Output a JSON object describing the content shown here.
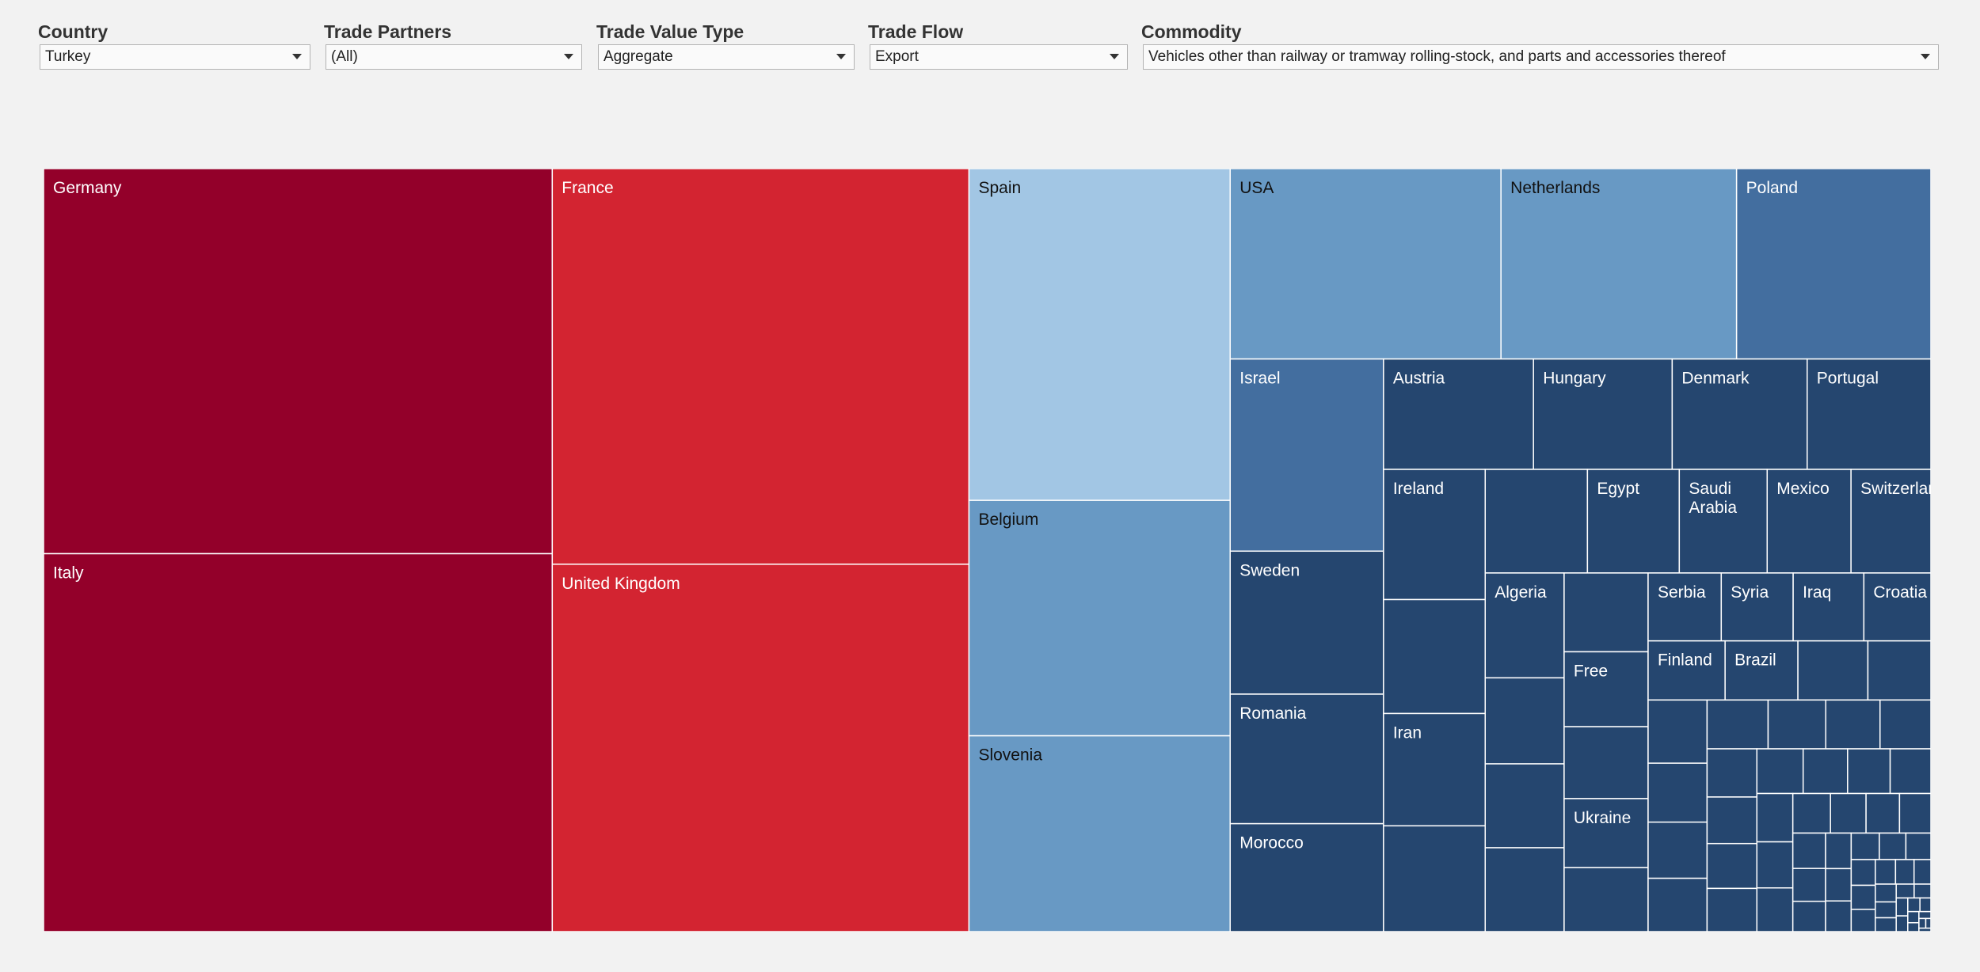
{
  "filters": {
    "country": {
      "label": "Country",
      "value": "Turkey"
    },
    "partners": {
      "label": "Trade Partners",
      "value": "(All)"
    },
    "value_type": {
      "label": "Trade Value Type",
      "value": "Aggregate"
    },
    "flow": {
      "label": "Trade Flow",
      "value": "Export"
    },
    "commodity": {
      "label": "Commodity",
      "value": "Vehicles other than railway or tramway rolling-stock, and parts and accessories thereof"
    }
  },
  "colors": {
    "dark_red": "#93002a",
    "red": "#d32431",
    "light_blue": "#a2c6e4",
    "mid_blue": "#6899c4",
    "steel_blue": "#436e9f",
    "dark_blue": "#25466f",
    "border": "#ffffff",
    "background": "#f2f2f2"
  },
  "chart_data": {
    "type": "treemap",
    "title": "",
    "value_note": "relative export share, estimated from rectangle areas",
    "items": [
      {
        "name": "Germany",
        "value": 236.7,
        "color": "dark_red"
      },
      {
        "name": "Italy",
        "value": 232.3,
        "color": "dark_red"
      },
      {
        "name": "France",
        "value": 199.2,
        "color": "red"
      },
      {
        "name": "United Kingdom",
        "value": 185.0,
        "color": "red"
      },
      {
        "name": "Spain",
        "value": 104.7,
        "color": "light_blue"
      },
      {
        "name": "Belgium",
        "value": 74.3,
        "color": "mid_blue"
      },
      {
        "name": "Slovenia",
        "value": 61.8,
        "color": "mid_blue"
      },
      {
        "name": "USA",
        "value": 62.3,
        "color": "mid_blue"
      },
      {
        "name": "Netherlands",
        "value": 54.2,
        "color": "mid_blue"
      },
      {
        "name": "Poland",
        "value": 44.7,
        "color": "steel_blue"
      },
      {
        "name": "Israel",
        "value": 35.6,
        "color": "steel_blue"
      },
      {
        "name": "Sweden",
        "value": 26.5,
        "color": "dark_blue"
      },
      {
        "name": "Romania",
        "value": 24.0,
        "color": "dark_blue"
      },
      {
        "name": "Morocco",
        "value": 20.0,
        "color": "dark_blue"
      },
      {
        "name": "Austria",
        "value": 20.0,
        "color": "dark_blue"
      },
      {
        "name": "Hungary",
        "value": 18.5,
        "color": "dark_blue"
      },
      {
        "name": "Denmark",
        "value": 18.0,
        "color": "dark_blue"
      },
      {
        "name": "Portugal",
        "value": 16.5,
        "color": "dark_blue"
      },
      {
        "name": "Ireland",
        "value": 16.0,
        "color": "dark_blue"
      },
      {
        "name": "",
        "value": 14.0,
        "color": "dark_blue"
      },
      {
        "name": "Iran",
        "value": 13.8,
        "color": "dark_blue"
      },
      {
        "name": "",
        "value": 13.0,
        "color": "dark_blue"
      },
      {
        "name": "",
        "value": 12.8,
        "color": "dark_blue"
      },
      {
        "name": "Egypt",
        "value": 11.5,
        "color": "dark_blue"
      },
      {
        "name": "Saudi Arabia",
        "value": 11.0,
        "color": "dark_blue"
      },
      {
        "name": "Mexico",
        "value": 10.5,
        "color": "dark_blue"
      },
      {
        "name": "Switzerland",
        "value": 10.0,
        "color": "dark_blue"
      },
      {
        "name": "Algeria",
        "value": 10.0,
        "color": "dark_blue"
      },
      {
        "name": "",
        "value": 8.2,
        "color": "dark_blue"
      },
      {
        "name": "",
        "value": 8.0,
        "color": "dark_blue"
      },
      {
        "name": "",
        "value": 8.0,
        "color": "dark_blue"
      },
      {
        "name": "",
        "value": 8.0,
        "color": "dark_blue"
      },
      {
        "name": "Free",
        "value": 7.6,
        "color": "dark_blue"
      },
      {
        "name": "",
        "value": 7.3,
        "color": "dark_blue"
      },
      {
        "name": "Ukraine",
        "value": 7.0,
        "color": "dark_blue"
      },
      {
        "name": "",
        "value": 6.5,
        "color": "dark_blue"
      },
      {
        "name": "Serbia",
        "value": 6.0,
        "color": "dark_blue"
      },
      {
        "name": "Syria",
        "value": 5.9,
        "color": "dark_blue"
      },
      {
        "name": "Iraq",
        "value": 5.8,
        "color": "dark_blue"
      },
      {
        "name": "Croatia",
        "value": 5.5,
        "color": "dark_blue"
      },
      {
        "name": "Finland",
        "value": 5.5,
        "color": "dark_blue"
      },
      {
        "name": "Brazil",
        "value": 5.2,
        "color": "dark_blue"
      },
      {
        "name": "",
        "value": 5.0,
        "color": "dark_blue"
      },
      {
        "name": "",
        "value": 4.5,
        "color": "dark_blue"
      },
      {
        "name": "",
        "value": 4.5,
        "color": "dark_blue"
      },
      {
        "name": "",
        "value": 4.2,
        "color": "dark_blue"
      },
      {
        "name": "",
        "value": 4.0,
        "color": "dark_blue"
      },
      {
        "name": "",
        "value": 3.8,
        "color": "dark_blue"
      },
      {
        "name": "",
        "value": 3.6,
        "color": "dark_blue"
      },
      {
        "name": "",
        "value": 3.4,
        "color": "dark_blue"
      },
      {
        "name": "",
        "value": 3.2,
        "color": "dark_blue"
      },
      {
        "name": "",
        "value": 3.0,
        "color": "dark_blue"
      },
      {
        "name": "",
        "value": 2.9,
        "color": "dark_blue"
      },
      {
        "name": "",
        "value": 2.8,
        "color": "dark_blue"
      },
      {
        "name": "",
        "value": 2.7,
        "color": "dark_blue"
      },
      {
        "name": "",
        "value": 2.6,
        "color": "dark_blue"
      },
      {
        "name": "",
        "value": 2.5,
        "color": "dark_blue"
      },
      {
        "name": "",
        "value": 2.4,
        "color": "dark_blue"
      },
      {
        "name": "",
        "value": 2.3,
        "color": "dark_blue"
      },
      {
        "name": "",
        "value": 2.2,
        "color": "dark_blue"
      },
      {
        "name": "",
        "value": 2.1,
        "color": "dark_blue"
      },
      {
        "name": "",
        "value": 2.0,
        "color": "dark_blue"
      },
      {
        "name": "",
        "value": 1.9,
        "color": "dark_blue"
      },
      {
        "name": "",
        "value": 1.8,
        "color": "dark_blue"
      },
      {
        "name": "",
        "value": 1.7,
        "color": "dark_blue"
      },
      {
        "name": "",
        "value": 1.6,
        "color": "dark_blue"
      },
      {
        "name": "",
        "value": 1.5,
        "color": "dark_blue"
      },
      {
        "name": "",
        "value": 1.4,
        "color": "dark_blue"
      },
      {
        "name": "",
        "value": 1.3,
        "color": "dark_blue"
      },
      {
        "name": "",
        "value": 1.2,
        "color": "dark_blue"
      },
      {
        "name": "",
        "value": 1.1,
        "color": "dark_blue"
      },
      {
        "name": "",
        "value": 1.0,
        "color": "dark_blue"
      },
      {
        "name": "",
        "value": 0.95,
        "color": "dark_blue"
      },
      {
        "name": "",
        "value": 0.9,
        "color": "dark_blue"
      },
      {
        "name": "",
        "value": 0.85,
        "color": "dark_blue"
      },
      {
        "name": "",
        "value": 0.8,
        "color": "dark_blue"
      },
      {
        "name": "",
        "value": 0.75,
        "color": "dark_blue"
      },
      {
        "name": "",
        "value": 0.7,
        "color": "dark_blue"
      },
      {
        "name": "",
        "value": 0.65,
        "color": "dark_blue"
      },
      {
        "name": "",
        "value": 0.6,
        "color": "dark_blue"
      },
      {
        "name": "",
        "value": 0.55,
        "color": "dark_blue"
      },
      {
        "name": "",
        "value": 0.5,
        "color": "dark_blue"
      },
      {
        "name": "",
        "value": 0.45,
        "color": "dark_blue"
      },
      {
        "name": "",
        "value": 0.4,
        "color": "dark_blue"
      },
      {
        "name": "",
        "value": 0.35,
        "color": "dark_blue"
      },
      {
        "name": "",
        "value": 0.3,
        "color": "dark_blue"
      },
      {
        "name": "",
        "value": 0.28,
        "color": "dark_blue"
      },
      {
        "name": "",
        "value": 0.25,
        "color": "dark_blue"
      },
      {
        "name": "",
        "value": 0.22,
        "color": "dark_blue"
      },
      {
        "name": "",
        "value": 0.2,
        "color": "dark_blue"
      },
      {
        "name": "",
        "value": 0.18,
        "color": "dark_blue"
      },
      {
        "name": "",
        "value": 0.15,
        "color": "dark_blue"
      },
      {
        "name": "",
        "value": 0.12,
        "color": "dark_blue"
      },
      {
        "name": "",
        "value": 0.1,
        "color": "dark_blue"
      },
      {
        "name": "",
        "value": 0.08,
        "color": "dark_blue"
      },
      {
        "name": "",
        "value": 0.06,
        "color": "dark_blue"
      },
      {
        "name": "",
        "value": 0.05,
        "color": "dark_blue"
      }
    ]
  }
}
